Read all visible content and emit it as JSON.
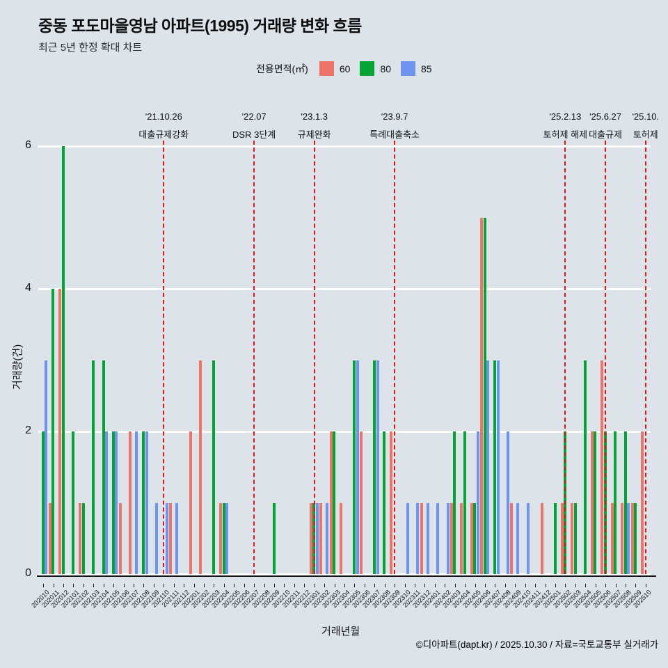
{
  "header": {
    "title": "중동 포도마을영남 아파트(1995) 거래량 변화 흐름",
    "subtitle": "최근 5년 한정 확대 차트"
  },
  "legend": {
    "title": "전용면적(㎡)",
    "items": [
      {
        "label": "60",
        "color": "#ee746a"
      },
      {
        "label": "80",
        "color": "#00a532"
      },
      {
        "label": "85",
        "color": "#6d95ef"
      }
    ]
  },
  "footer": {
    "credit": "©디아파트(dapt.kr) / 2025.10.30 / 자료=국토교통부 실거래가"
  },
  "chart_data": {
    "type": "bar",
    "title": "중동 포도마을영남 아파트(1995) 거래량 변화 흐름",
    "xlabel": "거래년월",
    "ylabel": "거래량(건)",
    "ylim": [
      0,
      6
    ],
    "yticks": [
      0,
      2,
      4,
      6
    ],
    "grid": true,
    "legend_position": "top",
    "categories": [
      "202010",
      "202011",
      "202012",
      "202101",
      "202102",
      "202103",
      "202104",
      "202105",
      "202106",
      "202107",
      "202108",
      "202109",
      "202110",
      "202111",
      "202112",
      "202201",
      "202202",
      "202203",
      "202204",
      "202205",
      "202206",
      "202207",
      "202208",
      "202209",
      "202210",
      "202211",
      "202212",
      "202301",
      "202302",
      "202303",
      "202304",
      "202305",
      "202306",
      "202307",
      "202308",
      "202309",
      "202310",
      "202311",
      "202312",
      "202401",
      "202402",
      "202403",
      "202404",
      "202405",
      "202406",
      "202407",
      "202408",
      "202409",
      "202410",
      "202411",
      "202412",
      "202501",
      "202502",
      "202503",
      "202504",
      "202505",
      "202506",
      "202507",
      "202508",
      "202509",
      "202510"
    ],
    "series": [
      {
        "name": "60",
        "color": "#ee746a",
        "values": [
          0,
          1,
          4,
          0,
          1,
          0,
          0,
          0,
          1,
          2,
          0,
          0,
          0,
          1,
          0,
          2,
          3,
          0,
          1,
          0,
          0,
          0,
          0,
          0,
          0,
          0,
          0,
          1,
          1,
          2,
          1,
          0,
          2,
          0,
          0,
          2,
          0,
          0,
          1,
          0,
          0,
          1,
          1,
          1,
          5,
          0,
          0,
          1,
          0,
          0,
          1,
          0,
          1,
          1,
          0,
          2,
          3,
          1,
          1,
          1,
          2
        ]
      },
      {
        "name": "80",
        "color": "#00a532",
        "values": [
          2,
          4,
          6,
          2,
          1,
          3,
          3,
          2,
          0,
          0,
          2,
          0,
          0,
          0,
          0,
          0,
          0,
          3,
          1,
          0,
          0,
          0,
          0,
          1,
          0,
          0,
          0,
          1,
          0,
          2,
          0,
          3,
          0,
          3,
          2,
          0,
          0,
          0,
          0,
          0,
          0,
          2,
          2,
          1,
          5,
          3,
          0,
          0,
          0,
          0,
          0,
          1,
          2,
          1,
          3,
          2,
          2,
          2,
          2,
          1,
          0
        ]
      },
      {
        "name": "85",
        "color": "#6d95ef",
        "values": [
          3,
          0,
          0,
          0,
          0,
          0,
          2,
          2,
          0,
          2,
          2,
          1,
          1,
          1,
          0,
          0,
          0,
          0,
          1,
          0,
          0,
          0,
          0,
          0,
          0,
          0,
          0,
          1,
          1,
          0,
          0,
          3,
          0,
          3,
          0,
          0,
          1,
          1,
          1,
          1,
          1,
          0,
          0,
          2,
          3,
          3,
          2,
          1,
          1,
          0,
          0,
          0,
          0,
          0,
          0,
          0,
          0,
          0,
          1,
          0,
          0
        ]
      }
    ],
    "annotations": [
      {
        "month": "202110",
        "date": "'21.10.26",
        "label": "대출규제강화"
      },
      {
        "month": "202207",
        "date": "'22.07",
        "label": "DSR 3단계"
      },
      {
        "month": "202301",
        "date": "'23.1.3",
        "label": "규제완화"
      },
      {
        "month": "202309",
        "date": "'23.9.7",
        "label": "특례대출축소"
      },
      {
        "month": "202502",
        "date": "'25.2.13",
        "label": "토허제 해제"
      },
      {
        "month": "202506",
        "date": "'25.6.27",
        "label": "대출규제"
      },
      {
        "month": "202510",
        "date": "'25.10.",
        "label": "토허제"
      }
    ],
    "annotation_color": "#e2141d"
  }
}
